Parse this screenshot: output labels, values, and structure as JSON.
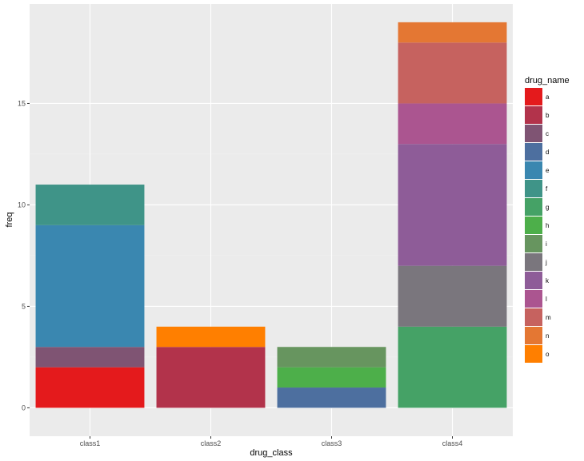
{
  "chart_data": {
    "type": "bar",
    "stacked": true,
    "xlabel": "drug_class",
    "ylabel": "freq",
    "ylim": [
      -1.4,
      19.9
    ],
    "yticks": [
      0,
      5,
      10,
      15
    ],
    "grid": true,
    "categories": [
      "class1",
      "class2",
      "class3",
      "class4"
    ],
    "legend": {
      "title": "drug_name",
      "placement": "right",
      "entries": [
        {
          "name": "a",
          "color": "#E41A1C"
        },
        {
          "name": "b",
          "color": "#B2334B"
        },
        {
          "name": "c",
          "color": "#7F5473"
        },
        {
          "name": "d",
          "color": "#4D6F9F"
        },
        {
          "name": "e",
          "color": "#3A87B0"
        },
        {
          "name": "f",
          "color": "#3F9488"
        },
        {
          "name": "g",
          "color": "#45A266"
        },
        {
          "name": "h",
          "color": "#4DAF4A"
        },
        {
          "name": "i",
          "color": "#67955F"
        },
        {
          "name": "j",
          "color": "#7A767D"
        },
        {
          "name": "k",
          "color": "#8E5C98"
        },
        {
          "name": "l",
          "color": "#AB5590"
        },
        {
          "name": "m",
          "color": "#C6625F"
        },
        {
          "name": "n",
          "color": "#E47733"
        },
        {
          "name": "o",
          "color": "#FF7F00"
        }
      ]
    },
    "stacks": [
      {
        "category": "class1",
        "segments": [
          {
            "name": "a",
            "value": 2
          },
          {
            "name": "c",
            "value": 1
          },
          {
            "name": "e",
            "value": 6
          },
          {
            "name": "f",
            "value": 2
          }
        ]
      },
      {
        "category": "class2",
        "segments": [
          {
            "name": "b",
            "value": 3
          },
          {
            "name": "o",
            "value": 1
          }
        ]
      },
      {
        "category": "class3",
        "segments": [
          {
            "name": "d",
            "value": 1
          },
          {
            "name": "h",
            "value": 1
          },
          {
            "name": "i",
            "value": 1
          }
        ]
      },
      {
        "category": "class4",
        "segments": [
          {
            "name": "g",
            "value": 4
          },
          {
            "name": "j",
            "value": 3
          },
          {
            "name": "k",
            "value": 6
          },
          {
            "name": "l",
            "value": 2
          },
          {
            "name": "m",
            "value": 3
          },
          {
            "name": "n",
            "value": 1
          }
        ]
      }
    ],
    "colors": {
      "panel_background": "#EBEBEB",
      "grid_major": "#FFFFFF",
      "grid_minor": "#F2F2F2"
    }
  }
}
